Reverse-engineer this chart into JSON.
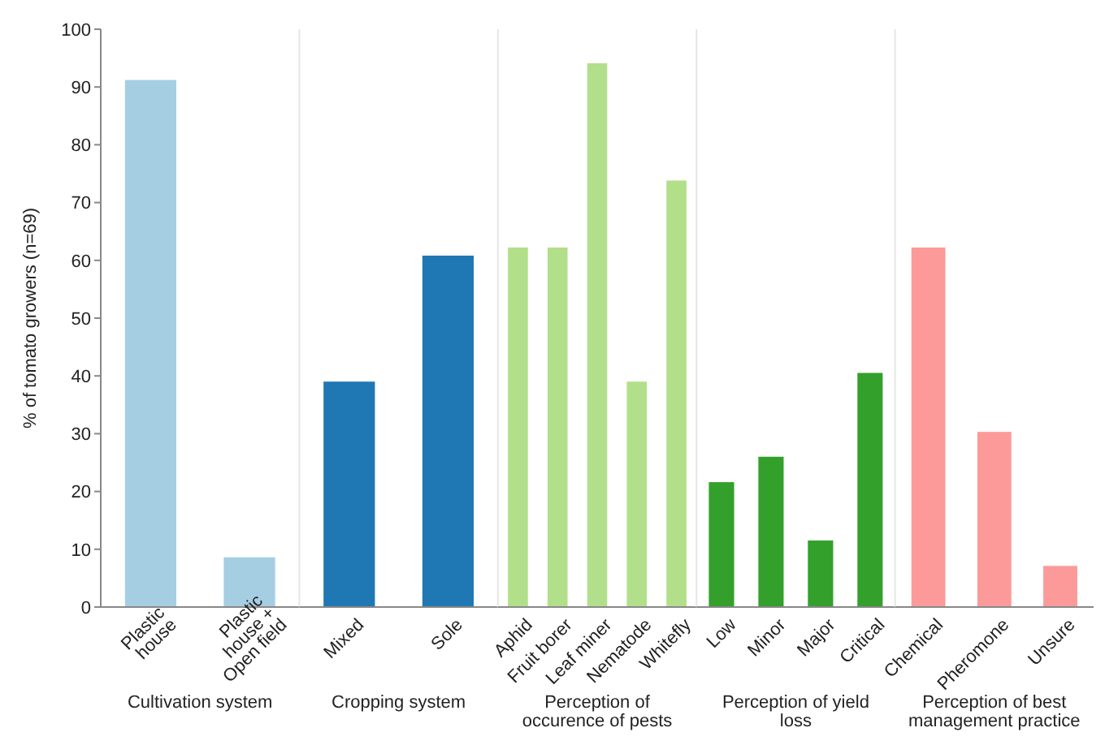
{
  "chart_data": [
    {
      "type": "bar",
      "xlabel": "Cultivation system",
      "ylabel": "% of tomato growers (n=69)",
      "categories": [
        "Plastic house",
        "Plastic house + Open field"
      ],
      "values": [
        91.3,
        8.7
      ],
      "color": "#a6cee3",
      "ylim": [
        0,
        100
      ],
      "yticks": [
        0,
        10,
        20,
        30,
        40,
        50,
        60,
        70,
        80,
        90,
        100
      ]
    },
    {
      "type": "bar",
      "xlabel": "Cropping system",
      "categories": [
        "Mixed",
        "Sole"
      ],
      "values": [
        39.1,
        60.9
      ],
      "color": "#1f78b4",
      "ylim": [
        0,
        100
      ],
      "tick_labels": "x"
    },
    {
      "type": "bar",
      "xlabel": "Perception of occurence of pests",
      "categories": [
        "Aphid",
        "Fruit borer",
        "Leaf miner",
        "Nematode",
        "Whitefly"
      ],
      "values": [
        62.3,
        62.3,
        94.2,
        39.1,
        73.9
      ],
      "color": "#b2df8a",
      "ylim": [
        0,
        100
      ],
      "tick_labels": "x"
    },
    {
      "type": "bar",
      "xlabel": "Perception of yield loss",
      "categories": [
        "Low",
        "Minor",
        "Major",
        "Critical"
      ],
      "values": [
        21.7,
        26.1,
        11.6,
        40.6
      ],
      "color": "#33a02c",
      "ylim": [
        0,
        100
      ],
      "tick_labels": "x"
    },
    {
      "type": "bar",
      "xlabel": "Perception of best management practice",
      "categories": [
        "Chemical",
        "Pheromone",
        "Unsure"
      ],
      "values": [
        62.3,
        30.4,
        7.2
      ],
      "color": "#fb9a99",
      "ylim": [
        0,
        100
      ],
      "tick_labels": "x"
    }
  ]
}
